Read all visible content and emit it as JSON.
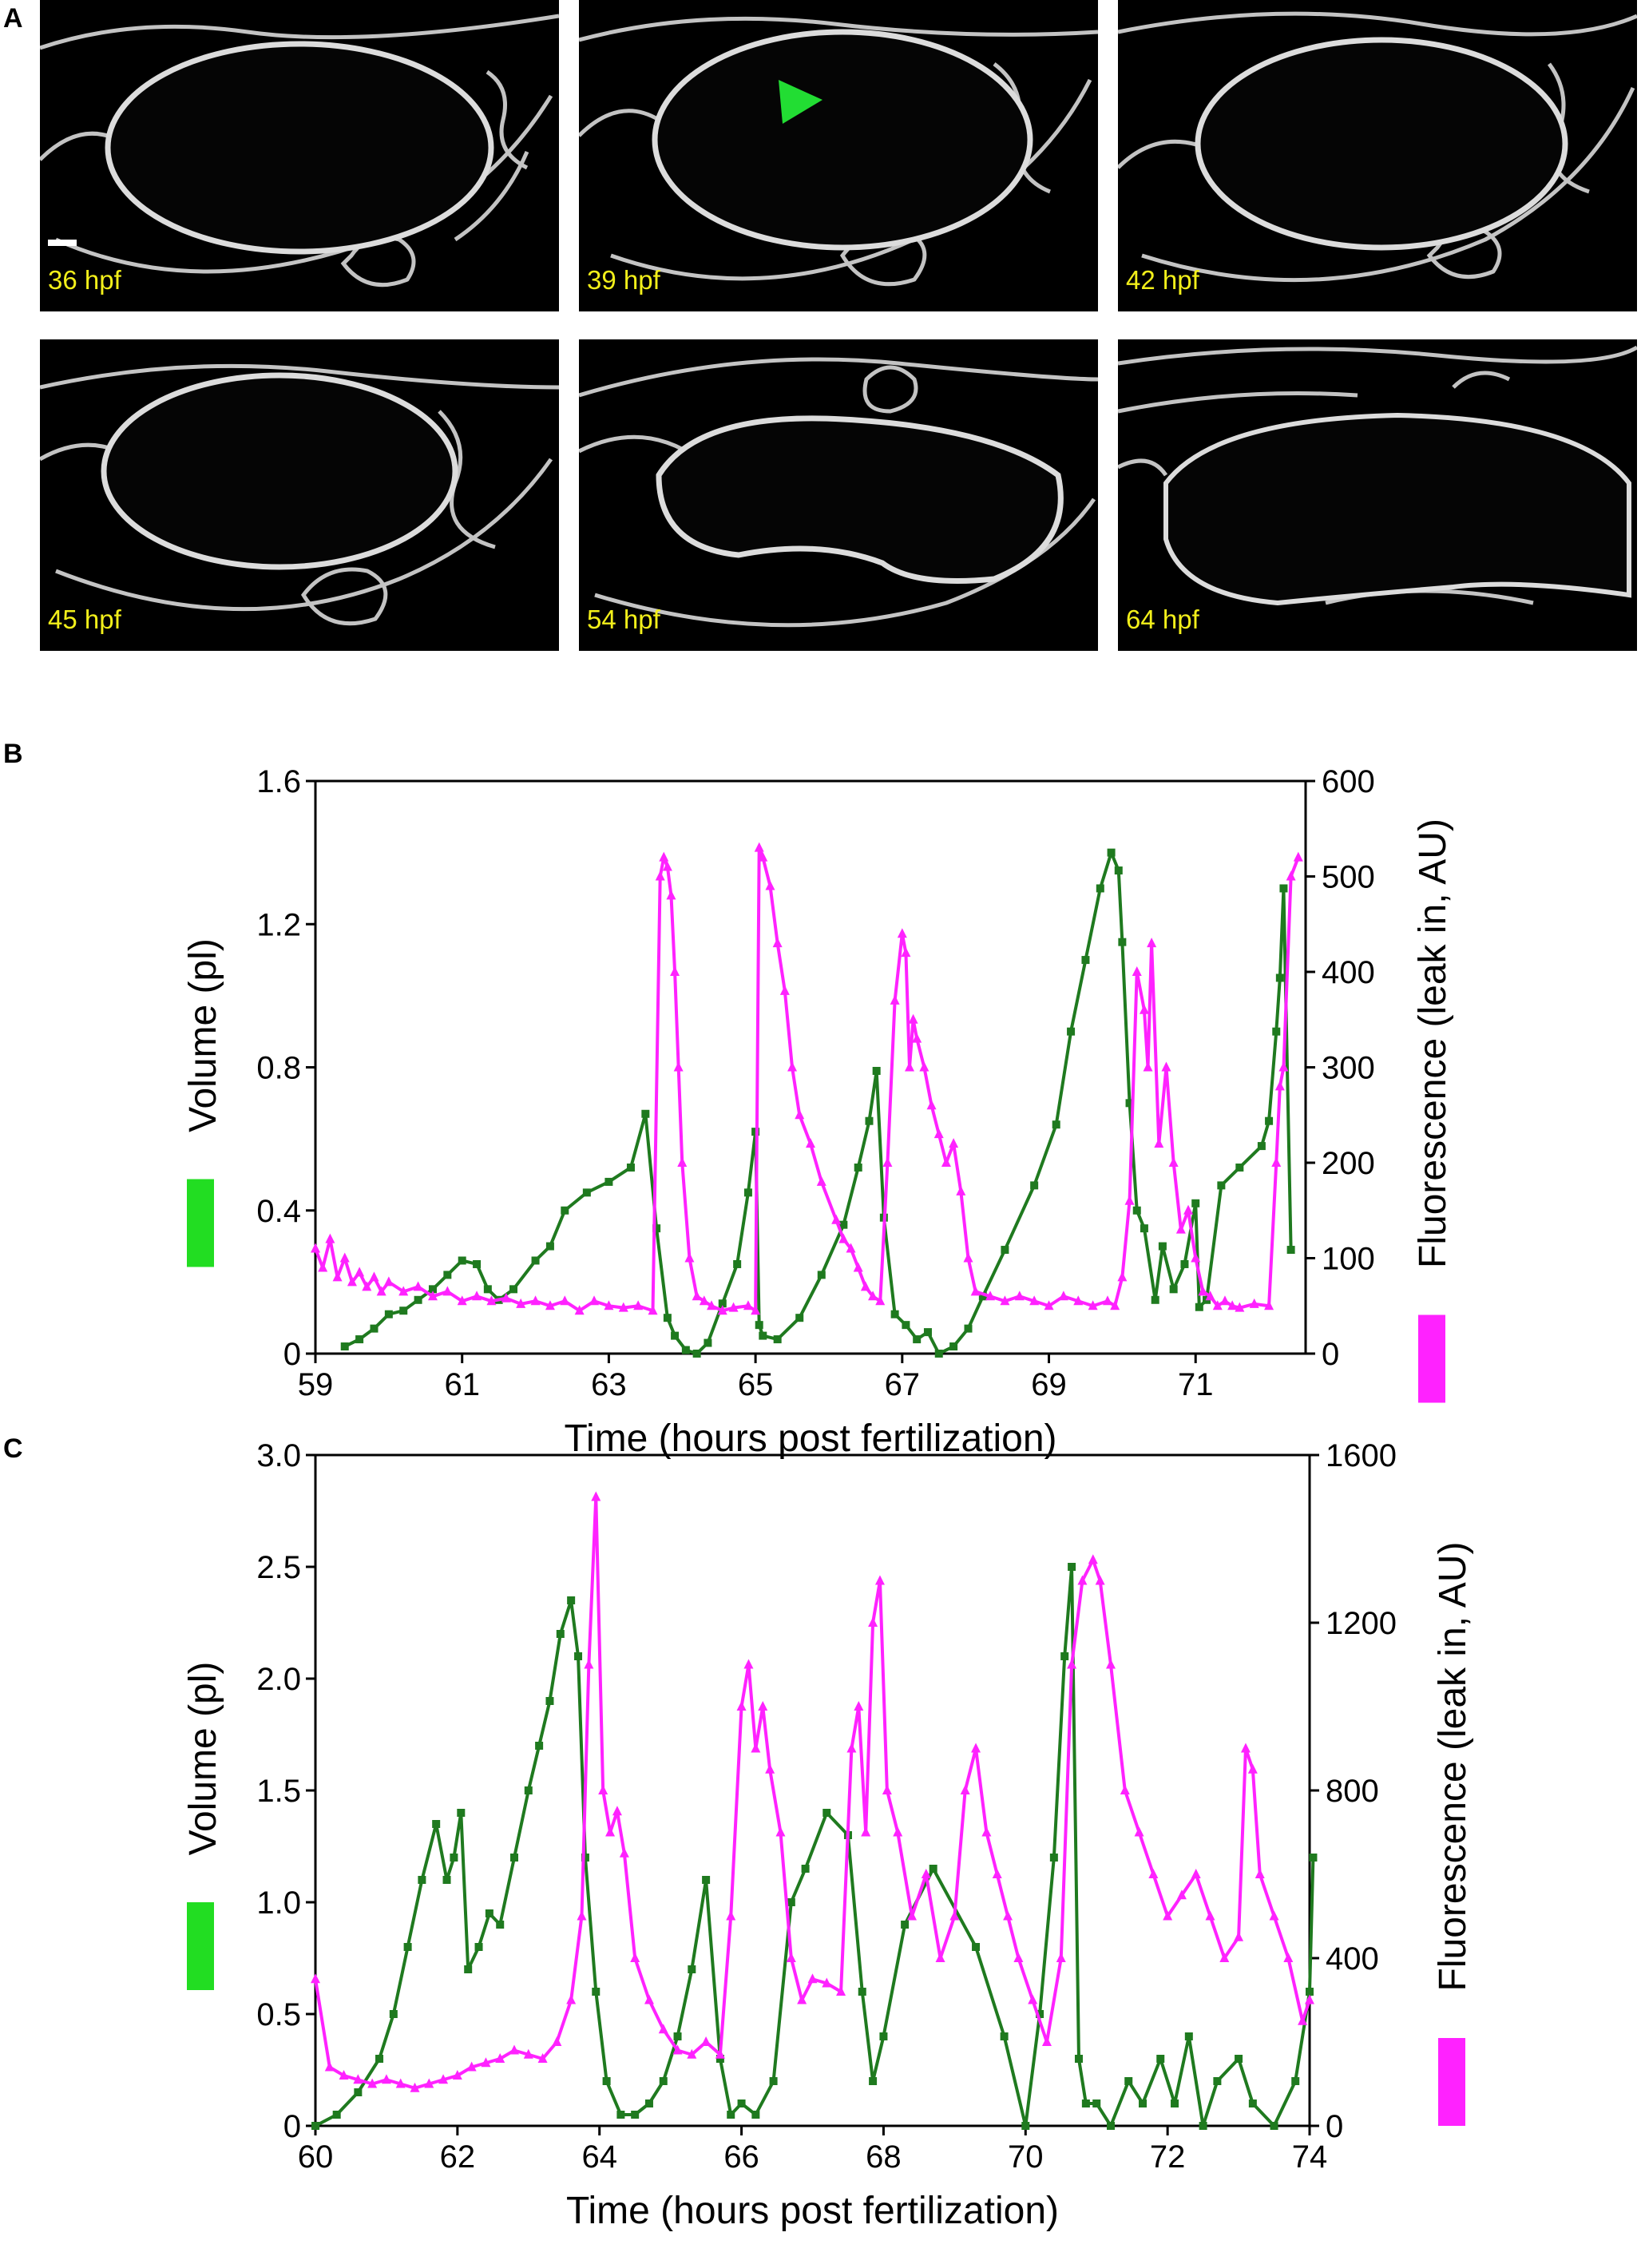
{
  "panel_a": {
    "letter": "A",
    "frames": [
      {
        "label": "36 hpf",
        "arrow": false,
        "scale_bar": true
      },
      {
        "label": "39 hpf",
        "arrow": true,
        "scale_bar": false
      },
      {
        "label": "42 hpf",
        "arrow": false,
        "scale_bar": false
      },
      {
        "label": "45 hpf",
        "arrow": false,
        "scale_bar": false
      },
      {
        "label": "54 hpf",
        "arrow": false,
        "scale_bar": false
      },
      {
        "label": "64 hpf",
        "arrow": false,
        "scale_bar": false
      }
    ],
    "arrow_color": "#22dd33",
    "label_color": "#f2ef1a"
  },
  "chart_data": [
    {
      "panel": "B",
      "type": "line",
      "xlabel": "Time (hours post fertilization)",
      "ylabel_left": "Volume (pl)",
      "ylabel_right": "Fluorescence (leak in, AU)",
      "xlim": [
        59,
        72.5
      ],
      "xticks": [
        59,
        61,
        63,
        65,
        67,
        69,
        71
      ],
      "ylim_left": [
        0,
        1.6
      ],
      "yticks_left": [
        "0",
        "0.4",
        "0.8",
        "1.2",
        "1.6"
      ],
      "yticks_left_values": [
        0,
        0.4,
        0.8,
        1.2,
        1.6
      ],
      "ylim_right": [
        0,
        600
      ],
      "yticks_right": [
        0,
        100,
        200,
        300,
        400,
        500,
        600
      ],
      "series": [
        {
          "axis": "left",
          "color": "#1f7a1f",
          "marker": "square",
          "x": [
            59.4,
            59.6,
            59.8,
            60.0,
            60.2,
            60.4,
            60.6,
            60.8,
            61.0,
            61.2,
            61.35,
            61.5,
            61.7,
            62.0,
            62.2,
            62.4,
            62.7,
            63.0,
            63.3,
            63.5,
            63.65,
            63.8,
            63.9,
            64.05,
            64.2,
            64.35,
            64.55,
            64.75,
            64.9,
            65.0,
            65.05,
            65.1,
            65.3,
            65.6,
            65.9,
            66.2,
            66.4,
            66.55,
            66.65,
            66.75,
            66.9,
            67.05,
            67.2,
            67.35,
            67.5,
            67.7,
            67.9,
            68.1,
            68.4,
            68.8,
            69.1,
            69.3,
            69.5,
            69.7,
            69.85,
            69.95,
            70.0,
            70.1,
            70.2,
            70.3,
            70.45,
            70.55,
            70.7,
            70.85,
            71.0,
            71.05,
            71.15,
            71.35,
            71.6,
            71.9,
            72.0,
            72.1,
            72.15,
            72.2,
            72.3
          ],
          "y": [
            0.02,
            0.04,
            0.07,
            0.11,
            0.12,
            0.15,
            0.18,
            0.22,
            0.26,
            0.25,
            0.18,
            0.15,
            0.18,
            0.26,
            0.3,
            0.4,
            0.45,
            0.48,
            0.52,
            0.67,
            0.35,
            0.1,
            0.05,
            0.01,
            0.0,
            0.03,
            0.14,
            0.25,
            0.45,
            0.62,
            0.08,
            0.05,
            0.04,
            0.1,
            0.22,
            0.36,
            0.52,
            0.65,
            0.79,
            0.38,
            0.11,
            0.08,
            0.04,
            0.06,
            0.0,
            0.02,
            0.07,
            0.16,
            0.29,
            0.47,
            0.64,
            0.9,
            1.1,
            1.3,
            1.4,
            1.35,
            1.15,
            0.7,
            0.4,
            0.35,
            0.15,
            0.3,
            0.18,
            0.25,
            0.42,
            0.13,
            0.15,
            0.47,
            0.52,
            0.58,
            0.65,
            0.9,
            1.05,
            1.3,
            0.29
          ]
        },
        {
          "axis": "right",
          "color": "#ff22ff",
          "marker": "triangle",
          "x": [
            59.0,
            59.1,
            59.2,
            59.3,
            59.4,
            59.5,
            59.6,
            59.7,
            59.8,
            59.9,
            60.0,
            60.2,
            60.4,
            60.6,
            60.8,
            61.0,
            61.2,
            61.4,
            61.6,
            61.8,
            62.0,
            62.2,
            62.4,
            62.6,
            62.8,
            63.0,
            63.2,
            63.4,
            63.6,
            63.7,
            63.75,
            63.8,
            63.85,
            63.9,
            63.95,
            64.0,
            64.1,
            64.2,
            64.3,
            64.4,
            64.55,
            64.7,
            64.9,
            65.0,
            65.05,
            65.1,
            65.2,
            65.3,
            65.4,
            65.5,
            65.6,
            65.75,
            65.9,
            66.1,
            66.2,
            66.3,
            66.4,
            66.5,
            66.6,
            66.7,
            66.8,
            66.9,
            67.0,
            67.05,
            67.1,
            67.15,
            67.2,
            67.3,
            67.4,
            67.5,
            67.6,
            67.7,
            67.8,
            67.9,
            68.0,
            68.2,
            68.4,
            68.6,
            68.8,
            69.0,
            69.2,
            69.4,
            69.6,
            69.8,
            69.9,
            70.0,
            70.1,
            70.2,
            70.3,
            70.35,
            70.4,
            70.5,
            70.6,
            70.7,
            70.8,
            70.9,
            71.0,
            71.1,
            71.2,
            71.3,
            71.4,
            71.5,
            71.6,
            71.8,
            72.0,
            72.1,
            72.15,
            72.2,
            72.3,
            72.4
          ],
          "y": [
            110,
            90,
            120,
            80,
            100,
            75,
            85,
            70,
            80,
            65,
            75,
            65,
            70,
            60,
            65,
            55,
            60,
            55,
            58,
            52,
            55,
            50,
            55,
            45,
            55,
            50,
            48,
            50,
            45,
            500,
            520,
            510,
            480,
            400,
            300,
            200,
            100,
            60,
            55,
            50,
            45,
            48,
            50,
            45,
            530,
            520,
            490,
            430,
            380,
            300,
            250,
            220,
            180,
            140,
            120,
            110,
            90,
            70,
            60,
            55,
            200,
            370,
            440,
            420,
            300,
            350,
            330,
            300,
            260,
            230,
            200,
            220,
            170,
            100,
            65,
            60,
            55,
            60,
            55,
            50,
            60,
            55,
            50,
            55,
            50,
            80,
            160,
            400,
            360,
            300,
            430,
            220,
            300,
            200,
            130,
            150,
            100,
            65,
            60,
            50,
            55,
            50,
            48,
            52,
            50,
            200,
            280,
            300,
            500,
            520
          ]
        }
      ]
    },
    {
      "panel": "C",
      "type": "line",
      "xlabel": "Time (hours post fertilization)",
      "ylabel_left": "Volume (pl)",
      "ylabel_right": "Fluorescence (leak in, AU)",
      "xlim": [
        60,
        74
      ],
      "xticks": [
        60,
        62,
        64,
        66,
        68,
        70,
        72,
        74
      ],
      "ylim_left": [
        0,
        3.0
      ],
      "yticks_left": [
        "0",
        "0.5",
        "1.0",
        "1.5",
        "2.0",
        "2.5",
        "3.0"
      ],
      "yticks_left_values": [
        0,
        0.5,
        1.0,
        1.5,
        2.0,
        2.5,
        3.0
      ],
      "ylim_right": [
        0,
        1600
      ],
      "yticks_right": [
        0,
        400,
        800,
        1200,
        1600
      ],
      "series": [
        {
          "axis": "left",
          "color": "#1f7a1f",
          "marker": "square",
          "x": [
            60.0,
            60.3,
            60.6,
            60.9,
            61.1,
            61.3,
            61.5,
            61.7,
            61.85,
            61.95,
            62.05,
            62.15,
            62.3,
            62.45,
            62.6,
            62.8,
            63.0,
            63.15,
            63.3,
            63.45,
            63.6,
            63.7,
            63.8,
            63.95,
            64.1,
            64.3,
            64.5,
            64.7,
            64.9,
            65.1,
            65.3,
            65.5,
            65.7,
            65.85,
            66.0,
            66.2,
            66.45,
            66.7,
            66.9,
            67.2,
            67.5,
            67.7,
            67.85,
            68.0,
            68.3,
            68.7,
            69.3,
            69.7,
            70.0,
            70.2,
            70.4,
            70.55,
            70.65,
            70.75,
            70.85,
            71.0,
            71.2,
            71.45,
            71.65,
            71.9,
            72.1,
            72.3,
            72.5,
            72.7,
            73.0,
            73.2,
            73.5,
            73.8,
            74.0,
            74.05
          ],
          "y": [
            0.0,
            0.05,
            0.15,
            0.3,
            0.5,
            0.8,
            1.1,
            1.35,
            1.1,
            1.2,
            1.4,
            0.7,
            0.8,
            0.95,
            0.9,
            1.2,
            1.5,
            1.7,
            1.9,
            2.2,
            2.35,
            2.1,
            1.2,
            0.6,
            0.2,
            0.05,
            0.05,
            0.1,
            0.2,
            0.4,
            0.7,
            1.1,
            0.3,
            0.05,
            0.1,
            0.05,
            0.2,
            1.0,
            1.15,
            1.4,
            1.3,
            0.6,
            0.2,
            0.4,
            0.9,
            1.15,
            0.8,
            0.4,
            0.0,
            0.5,
            1.2,
            2.1,
            2.5,
            0.3,
            0.1,
            0.1,
            0.0,
            0.2,
            0.1,
            0.3,
            0.1,
            0.4,
            0.0,
            0.2,
            0.3,
            0.1,
            0.0,
            0.2,
            0.6,
            1.2
          ]
        },
        {
          "axis": "right",
          "color": "#ff22ff",
          "marker": "triangle",
          "x": [
            60.0,
            60.2,
            60.4,
            60.6,
            60.8,
            61.0,
            61.2,
            61.4,
            61.6,
            61.8,
            62.0,
            62.2,
            62.4,
            62.6,
            62.8,
            63.0,
            63.2,
            63.4,
            63.6,
            63.75,
            63.85,
            63.95,
            64.05,
            64.15,
            64.25,
            64.35,
            64.5,
            64.7,
            64.9,
            65.1,
            65.3,
            65.5,
            65.7,
            65.85,
            66.0,
            66.1,
            66.2,
            66.3,
            66.4,
            66.55,
            66.7,
            66.85,
            67.0,
            67.2,
            67.4,
            67.55,
            67.65,
            67.75,
            67.85,
            67.95,
            68.05,
            68.2,
            68.4,
            68.6,
            68.8,
            69.0,
            69.15,
            69.3,
            69.45,
            69.6,
            69.75,
            69.9,
            70.1,
            70.3,
            70.5,
            70.65,
            70.8,
            70.95,
            71.05,
            71.2,
            71.4,
            71.6,
            71.8,
            72.0,
            72.2,
            72.4,
            72.6,
            72.8,
            73.0,
            73.1,
            73.2,
            73.3,
            73.5,
            73.7,
            73.9,
            74.0
          ],
          "y": [
            350,
            140,
            120,
            110,
            100,
            110,
            100,
            90,
            100,
            110,
            120,
            140,
            150,
            160,
            180,
            170,
            160,
            200,
            300,
            500,
            1100,
            1500,
            800,
            700,
            750,
            650,
            400,
            300,
            230,
            180,
            170,
            200,
            170,
            500,
            1000,
            1100,
            900,
            1000,
            850,
            700,
            400,
            300,
            350,
            340,
            320,
            900,
            1000,
            700,
            1200,
            1300,
            800,
            700,
            500,
            600,
            400,
            500,
            800,
            900,
            700,
            600,
            500,
            400,
            300,
            200,
            400,
            1100,
            1300,
            1350,
            1300,
            1100,
            800,
            700,
            600,
            500,
            550,
            600,
            500,
            400,
            450,
            900,
            850,
            600,
            500,
            400,
            250,
            300
          ]
        }
      ]
    }
  ]
}
